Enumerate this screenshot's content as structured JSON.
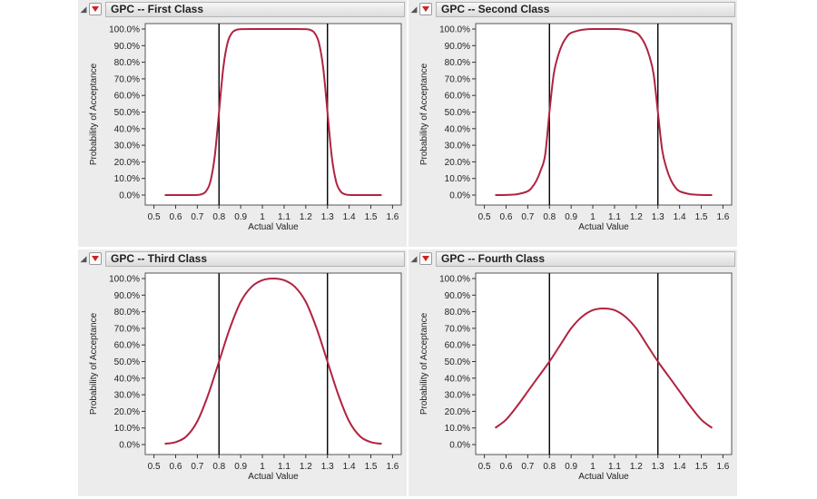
{
  "panels": [
    {
      "title": "GPC -- First Class"
    },
    {
      "title": "GPC -- Second Class"
    },
    {
      "title": "GPC -- Third Class"
    },
    {
      "title": "GPC -- Fourth Class"
    }
  ],
  "icons": {
    "disclosure": "disclosure-triangle-icon",
    "menu": "red-triangle-menu-icon"
  },
  "colors": {
    "curve": "#b0243f",
    "limits": "#000000",
    "menu": "#cc2222"
  },
  "chart_data": [
    {
      "type": "line",
      "title": "GPC -- First Class",
      "xlabel": "Actual Value",
      "ylabel": "Probability of Acceptance",
      "xlim": [
        0.5,
        1.6
      ],
      "ylim": [
        0,
        100
      ],
      "xticks": [
        "0.5",
        "0.6",
        "0.7",
        "0.8",
        "0.9",
        "1",
        "1.1",
        "1.2",
        "1.3",
        "1.4",
        "1.5",
        "1.6"
      ],
      "yticks": [
        "0.0%",
        "10.0%",
        "20.0%",
        "30.0%",
        "40.0%",
        "50.0%",
        "60.0%",
        "70.0%",
        "80.0%",
        "90.0%",
        "100.0%"
      ],
      "reference_lines_x": [
        0.8,
        1.3
      ],
      "grid": false,
      "series": [
        {
          "x": [
            0.55,
            0.6,
            0.65,
            0.7,
            0.72,
            0.74,
            0.76,
            0.78,
            0.8,
            0.82,
            0.84,
            0.86,
            0.88,
            0.9,
            0.95,
            1.0,
            1.05,
            1.1,
            1.15,
            1.2,
            1.22,
            1.24,
            1.26,
            1.28,
            1.3,
            1.32,
            1.34,
            1.36,
            1.38,
            1.4,
            1.45,
            1.5,
            1.55
          ],
          "y": [
            0.0,
            0.0,
            0.0,
            0.1,
            0.5,
            2.3,
            8.0,
            23.0,
            50.0,
            77.0,
            92.0,
            97.7,
            99.5,
            99.9,
            100.0,
            100.0,
            100.0,
            100.0,
            100.0,
            99.9,
            99.5,
            97.7,
            92.0,
            77.0,
            50.0,
            23.0,
            8.0,
            2.3,
            0.5,
            0.1,
            0.0,
            0.0,
            0.0
          ]
        }
      ]
    },
    {
      "type": "line",
      "title": "GPC -- Second Class",
      "xlabel": "Actual Value",
      "ylabel": "Probability of Acceptance",
      "xlim": [
        0.5,
        1.6
      ],
      "ylim": [
        0,
        100
      ],
      "xticks": [
        "0.5",
        "0.6",
        "0.7",
        "0.8",
        "0.9",
        "1",
        "1.1",
        "1.2",
        "1.3",
        "1.4",
        "1.5",
        "1.6"
      ],
      "yticks": [
        "0.0%",
        "10.0%",
        "20.0%",
        "30.0%",
        "40.0%",
        "50.0%",
        "60.0%",
        "70.0%",
        "80.0%",
        "90.0%",
        "100.0%"
      ],
      "reference_lines_x": [
        0.8,
        1.3
      ],
      "grid": false,
      "series": [
        {
          "x": [
            0.55,
            0.6,
            0.65,
            0.7,
            0.72,
            0.74,
            0.76,
            0.78,
            0.8,
            0.82,
            0.84,
            0.86,
            0.88,
            0.9,
            0.95,
            1.0,
            1.05,
            1.1,
            1.15,
            1.2,
            1.22,
            1.24,
            1.26,
            1.28,
            1.3,
            1.32,
            1.34,
            1.36,
            1.38,
            1.4,
            1.45,
            1.5,
            1.55
          ],
          "y": [
            0.0,
            0.1,
            0.5,
            2.3,
            4.7,
            8.7,
            15.0,
            24.0,
            50.0,
            73.0,
            84.0,
            91.0,
            95.3,
            97.7,
            99.5,
            100.0,
            100.0,
            100.0,
            99.5,
            97.7,
            95.3,
            91.0,
            84.0,
            73.0,
            50.0,
            27.0,
            16.0,
            9.0,
            4.7,
            2.3,
            0.5,
            0.1,
            0.0
          ]
        }
      ]
    },
    {
      "type": "line",
      "title": "GPC -- Third Class",
      "xlabel": "Actual Value",
      "ylabel": "Probability of Acceptance",
      "xlim": [
        0.5,
        1.6
      ],
      "ylim": [
        0,
        100
      ],
      "xticks": [
        "0.5",
        "0.6",
        "0.7",
        "0.8",
        "0.9",
        "1",
        "1.1",
        "1.2",
        "1.3",
        "1.4",
        "1.5",
        "1.6"
      ],
      "yticks": [
        "0.0%",
        "10.0%",
        "20.0%",
        "30.0%",
        "40.0%",
        "50.0%",
        "60.0%",
        "70.0%",
        "80.0%",
        "90.0%",
        "100.0%"
      ],
      "reference_lines_x": [
        0.8,
        1.3
      ],
      "grid": false,
      "series": [
        {
          "x": [
            0.55,
            0.6,
            0.65,
            0.7,
            0.75,
            0.8,
            0.85,
            0.9,
            0.95,
            1.0,
            1.05,
            1.1,
            1.15,
            1.2,
            1.25,
            1.3,
            1.35,
            1.4,
            1.45,
            1.5,
            1.55
          ],
          "y": [
            0.5,
            1.5,
            5.0,
            14.0,
            30.0,
            50.0,
            70.0,
            86.0,
            95.0,
            99.0,
            100.0,
            99.0,
            95.0,
            86.0,
            70.0,
            50.0,
            30.0,
            14.0,
            5.0,
            1.5,
            0.5
          ]
        }
      ]
    },
    {
      "type": "line",
      "title": "GPC -- Fourth Class",
      "xlabel": "Actual Value",
      "ylabel": "Probability of Acceptance",
      "xlim": [
        0.5,
        1.6
      ],
      "ylim": [
        0,
        100
      ],
      "xticks": [
        "0.5",
        "0.6",
        "0.7",
        "0.8",
        "0.9",
        "1",
        "1.1",
        "1.2",
        "1.3",
        "1.4",
        "1.5",
        "1.6"
      ],
      "yticks": [
        "0.0%",
        "10.0%",
        "20.0%",
        "30.0%",
        "40.0%",
        "50.0%",
        "60.0%",
        "70.0%",
        "80.0%",
        "90.0%",
        "100.0%"
      ],
      "reference_lines_x": [
        0.8,
        1.3
      ],
      "grid": false,
      "series": [
        {
          "x": [
            0.55,
            0.6,
            0.65,
            0.7,
            0.75,
            0.8,
            0.85,
            0.9,
            0.95,
            1.0,
            1.05,
            1.1,
            1.15,
            1.2,
            1.25,
            1.3,
            1.35,
            1.4,
            1.45,
            1.5,
            1.55
          ],
          "y": [
            10.0,
            15.0,
            23.0,
            32.0,
            41.0,
            50.0,
            60.0,
            70.0,
            77.0,
            81.0,
            82.0,
            81.0,
            77.0,
            70.0,
            60.0,
            50.0,
            41.0,
            32.0,
            23.0,
            15.0,
            10.0
          ]
        }
      ]
    }
  ]
}
